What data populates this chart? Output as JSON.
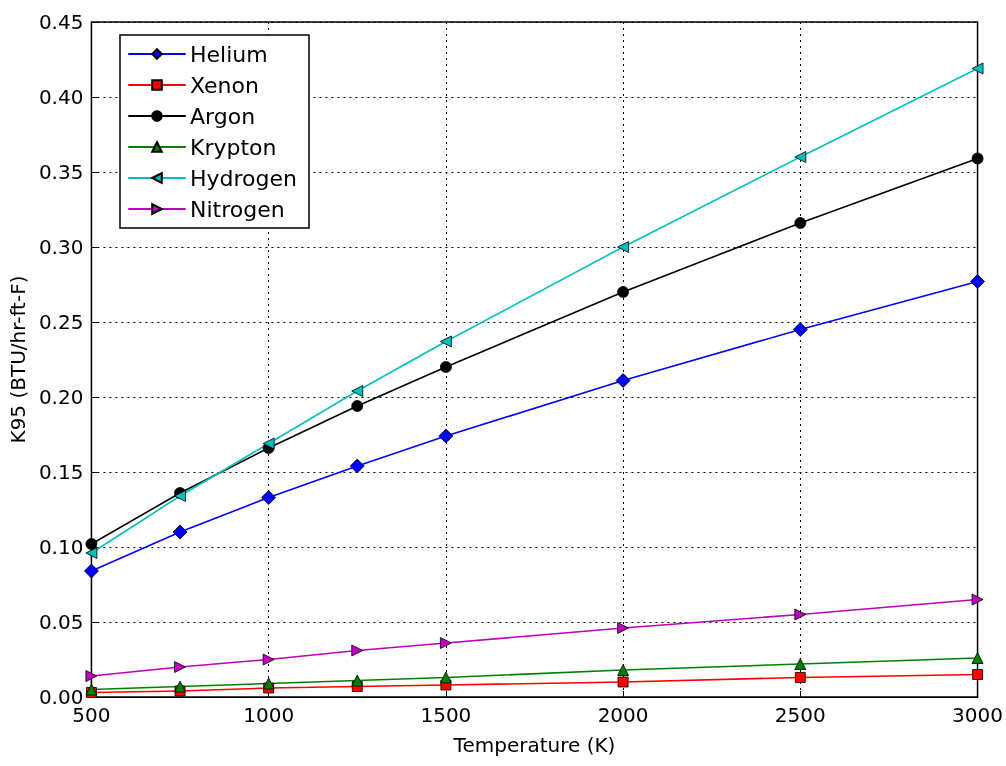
{
  "chart_data": {
    "type": "line",
    "xlabel": "Temperature (K)",
    "ylabel": "K95 (BTU/hr-ft-F)",
    "x": [
      500,
      750,
      1000,
      1250,
      1500,
      2000,
      2500,
      3000
    ],
    "xlim": [
      500,
      3000
    ],
    "xticks": [
      500,
      1000,
      1500,
      2000,
      2500,
      3000
    ],
    "ylim": [
      0,
      0.45
    ],
    "yticks": [
      {
        "value": 0,
        "label": "0.00"
      },
      {
        "value": 0.05,
        "label": "0.05"
      },
      {
        "value": 0.1,
        "label": "0.10"
      },
      {
        "value": 0.15,
        "label": "0.15"
      },
      {
        "value": 0.2,
        "label": "0.20"
      },
      {
        "value": 0.25,
        "label": "0.25"
      },
      {
        "value": 0.3,
        "label": "0.30"
      },
      {
        "value": 0.35,
        "label": "0.35"
      },
      {
        "value": 0.4,
        "label": "0.40"
      },
      {
        "value": 0.45,
        "label": "0.45"
      }
    ],
    "grid": true,
    "legend": "top left",
    "line_style": "solid",
    "series": [
      {
        "name": "Helium",
        "color": "#0000ff",
        "marker": "diamond",
        "values": [
          0.084,
          0.11,
          0.133,
          0.154,
          0.174,
          0.211,
          0.245,
          0.277
        ]
      },
      {
        "name": "Xenon",
        "color": "#ff0000",
        "marker": "square",
        "values": [
          0.003,
          0.004,
          0.006,
          0.007,
          0.008,
          0.01,
          0.013,
          0.015
        ]
      },
      {
        "name": "Argon",
        "color": "#000000",
        "marker": "circle",
        "values": [
          0.102,
          0.136,
          0.166,
          0.194,
          0.22,
          0.27,
          0.316,
          0.359
        ]
      },
      {
        "name": "Krypton",
        "color": "#008000",
        "marker": "triangle",
        "values": [
          0.005,
          0.007,
          0.009,
          0.011,
          0.013,
          0.018,
          0.022,
          0.026
        ]
      },
      {
        "name": "Hydrogen",
        "color": "#00bfbf",
        "marker": "triangle-left",
        "values": [
          0.096,
          0.134,
          0.169,
          0.204,
          0.237,
          0.3,
          0.36,
          0.419
        ]
      },
      {
        "name": "Nitrogen",
        "color": "#bf00bf",
        "marker": "triangle-right",
        "values": [
          0.014,
          0.02,
          0.025,
          0.031,
          0.036,
          0.046,
          0.055,
          0.065
        ]
      }
    ]
  }
}
